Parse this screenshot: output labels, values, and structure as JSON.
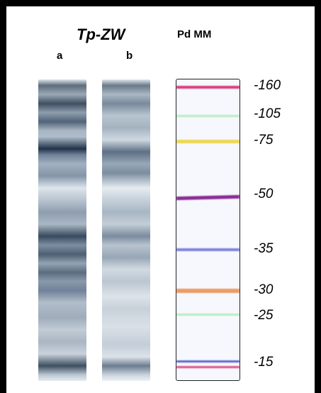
{
  "header": {
    "title": "Tp-ZW",
    "marker_title": "Pd MM"
  },
  "lanes": [
    "a",
    "b"
  ],
  "marker_labels": [
    "-160",
    "-105",
    "-75",
    "-50",
    "-35",
    "-30",
    "-25",
    "-15"
  ]
}
